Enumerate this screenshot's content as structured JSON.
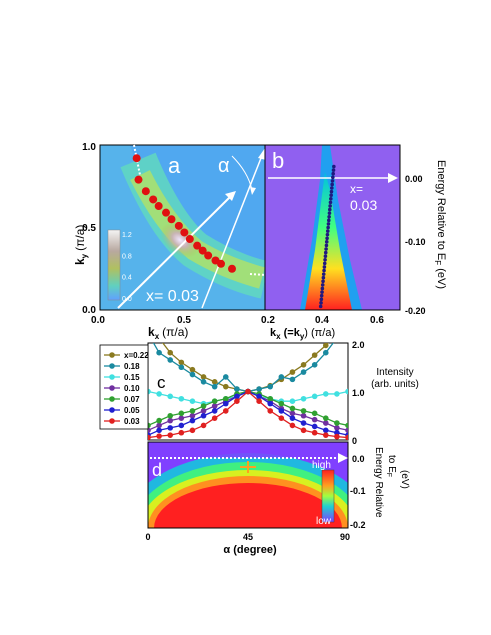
{
  "chart_data": [
    {
      "panel": "a",
      "type": "heatmap",
      "panel_label": "a",
      "xlabel": "k",
      "xlabel_sub": "x",
      "xlabel_unit": "(π/a)",
      "ylabel": "k",
      "ylabel_sub": "y",
      "ylabel_unit": "(π/a)",
      "xticks": [
        "0.0",
        "0.5"
      ],
      "yticks": [
        "0.0",
        "0.5",
        "1.0"
      ],
      "xlim": [
        0,
        0.9
      ],
      "ylim": [
        0,
        1.0
      ],
      "doping_label": "x= 0.03",
      "angle_label": "α",
      "colorbar_ticks": [
        "1.2",
        "0.8",
        "0.4",
        "0.0"
      ],
      "fermi_points": [
        [
          0.2,
          0.92
        ],
        [
          0.21,
          0.79
        ],
        [
          0.25,
          0.72
        ],
        [
          0.29,
          0.67
        ],
        [
          0.32,
          0.63
        ],
        [
          0.36,
          0.59
        ],
        [
          0.39,
          0.55
        ],
        [
          0.43,
          0.51
        ],
        [
          0.46,
          0.47
        ],
        [
          0.49,
          0.43
        ],
        [
          0.53,
          0.39
        ],
        [
          0.56,
          0.36
        ],
        [
          0.59,
          0.33
        ],
        [
          0.63,
          0.3
        ],
        [
          0.66,
          0.28
        ],
        [
          0.72,
          0.25
        ]
      ]
    },
    {
      "panel": "b",
      "type": "heatmap",
      "panel_label": "b",
      "xlabel": "k",
      "xlabel_sub": "x",
      "xlabel_mid": " (=k",
      "xlabel_sub2": "y",
      "xlabel_unit": ") (π/a)",
      "xticks": [
        "0.2",
        "0.4",
        "0.6"
      ],
      "xlim": [
        0.2,
        0.7
      ],
      "ylabel": "Energy Relative to E",
      "ylabel_sub": "F",
      "ylabel_unit": " (eV)",
      "yticks": [
        "0.00",
        "-0.10",
        "-0.20"
      ],
      "ylim": [
        -0.2,
        0.03
      ],
      "doping_label": "x=",
      "doping_value": "0.03",
      "dispersion": [
        [
          0.455,
          0.0
        ],
        [
          0.45,
          -0.02
        ],
        [
          0.445,
          -0.04
        ],
        [
          0.44,
          -0.06
        ],
        [
          0.435,
          -0.08
        ],
        [
          0.43,
          -0.1
        ],
        [
          0.425,
          -0.12
        ],
        [
          0.42,
          -0.14
        ],
        [
          0.415,
          -0.16
        ],
        [
          0.41,
          -0.18
        ],
        [
          0.405,
          -0.2
        ]
      ]
    },
    {
      "panel": "c",
      "type": "line",
      "panel_label": "c",
      "ylabel": "Intensity",
      "ylabel2": "(arb. units)",
      "yticks": [
        "0",
        "1.0",
        "2.0"
      ],
      "ylim": [
        0,
        2.0
      ],
      "xlim": [
        0,
        90
      ],
      "x": [
        0,
        5,
        10,
        15,
        20,
        25,
        30,
        35,
        40,
        45,
        50,
        55,
        60,
        65,
        70,
        75,
        80,
        85,
        90
      ],
      "series": [
        {
          "name": "x=0.22",
          "color": "#8a7a20",
          "values": [
            2.4,
            2.1,
            1.8,
            1.6,
            1.45,
            1.3,
            1.2,
            1.1,
            1.05,
            1.0,
            1.05,
            1.12,
            1.25,
            1.4,
            1.55,
            1.75,
            1.95,
            2.2,
            2.4
          ]
        },
        {
          "name": "0.18",
          "color": "#1a8aa0",
          "values": [
            2.2,
            1.8,
            1.65,
            1.5,
            1.35,
            1.2,
            1.1,
            1.3,
            1.05,
            1.0,
            1.05,
            1.1,
            1.3,
            1.25,
            1.4,
            1.55,
            1.8,
            2.1,
            2.3
          ]
        },
        {
          "name": "0.15",
          "color": "#40e0e0",
          "values": [
            1.0,
            0.95,
            0.9,
            0.85,
            0.8,
            0.75,
            0.8,
            0.85,
            0.9,
            1.0,
            0.9,
            0.85,
            0.8,
            0.8,
            0.85,
            0.9,
            0.95,
            0.95,
            1.0
          ]
        },
        {
          "name": "0.10",
          "color": "#7030a0",
          "values": [
            0.2,
            0.3,
            0.4,
            0.45,
            0.5,
            0.6,
            0.7,
            0.8,
            0.9,
            1.0,
            0.9,
            0.8,
            0.65,
            0.55,
            0.5,
            0.42,
            0.35,
            0.25,
            0.2
          ]
        },
        {
          "name": "0.07",
          "color": "#30a030",
          "values": [
            0.3,
            0.4,
            0.5,
            0.55,
            0.6,
            0.7,
            0.8,
            0.85,
            0.95,
            1.0,
            0.95,
            0.85,
            0.75,
            0.65,
            0.6,
            0.55,
            0.45,
            0.35,
            0.3
          ]
        },
        {
          "name": "0.05",
          "color": "#2020d0",
          "values": [
            0.1,
            0.2,
            0.25,
            0.3,
            0.4,
            0.5,
            0.6,
            0.75,
            0.9,
            1.0,
            0.9,
            0.75,
            0.6,
            0.45,
            0.35,
            0.28,
            0.2,
            0.15,
            0.1
          ]
        },
        {
          "name": "0.03",
          "color": "#e02020",
          "values": [
            0.05,
            0.08,
            0.1,
            0.15,
            0.2,
            0.3,
            0.45,
            0.6,
            0.8,
            1.0,
            0.8,
            0.6,
            0.45,
            0.3,
            0.2,
            0.15,
            0.1,
            0.07,
            0.05
          ]
        }
      ]
    },
    {
      "panel": "d",
      "type": "heatmap",
      "panel_label": "d",
      "xlabel": "α (degree)",
      "xticks": [
        "0",
        "45",
        "90"
      ],
      "xlim": [
        0,
        90
      ],
      "ylabel": "Energy Relative",
      "ylabel2": "to E",
      "ylabel2_sub": "F",
      "ylabel3": "(eV)",
      "yticks": [
        "0.0",
        "-0.1",
        "-0.2"
      ],
      "ylim": [
        -0.2,
        0.03
      ],
      "colorbar_high": "high",
      "colorbar_low": "low"
    }
  ]
}
